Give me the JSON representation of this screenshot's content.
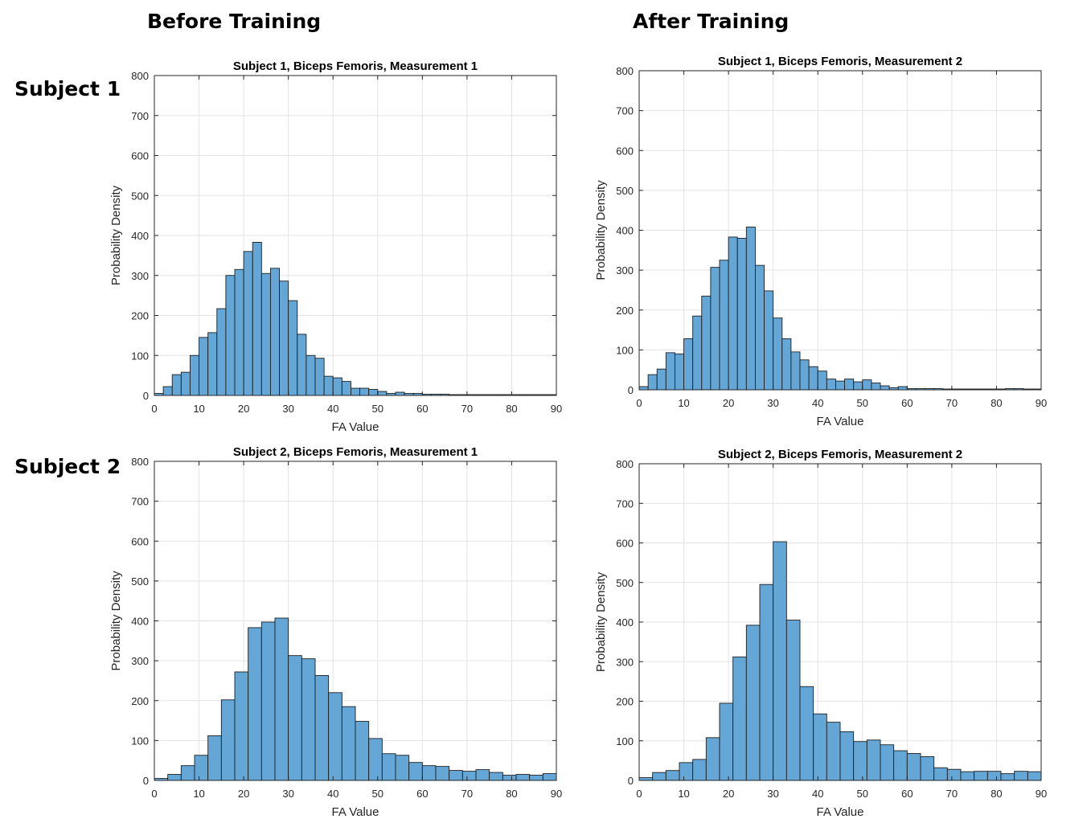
{
  "headings": {
    "before": "Before Training",
    "after": "After Training",
    "subject1": "Subject 1",
    "subject2": "Subject 2"
  },
  "colors": {
    "bar_fill": "#64a7d6",
    "bar_edge": "#1f1f1f",
    "grid": "#e3e3e3",
    "axis": "#262626"
  },
  "chart_data": [
    {
      "type": "bar",
      "title": "Subject 1, Biceps Femoris, Measurement 1",
      "xlabel": "FA Value",
      "ylabel": "Probability Density",
      "xlim": [
        0,
        90
      ],
      "ylim": [
        0,
        800
      ],
      "xticks": [
        "0",
        "10",
        "20",
        "30",
        "40",
        "50",
        "60",
        "70",
        "80",
        "90"
      ],
      "yticks": [
        "0",
        "100",
        "200",
        "300",
        "400",
        "500",
        "600",
        "700",
        "800"
      ],
      "grid": true,
      "bin_width": 2,
      "x_start": 0,
      "values": [
        5,
        22,
        52,
        58,
        100,
        145,
        157,
        217,
        300,
        315,
        360,
        383,
        305,
        318,
        286,
        237,
        153,
        100,
        93,
        48,
        44,
        35,
        18,
        18,
        15,
        10,
        5,
        8,
        5,
        5,
        3,
        3,
        3,
        2,
        2,
        2,
        2,
        2,
        2,
        2,
        2,
        2,
        2,
        2,
        2
      ]
    },
    {
      "type": "bar",
      "title": "Subject 1, Biceps Femoris, Measurement 2",
      "xlabel": "FA Value",
      "ylabel": "Probability Density",
      "xlim": [
        0,
        90
      ],
      "ylim": [
        0,
        800
      ],
      "xticks": [
        "0",
        "10",
        "20",
        "30",
        "40",
        "50",
        "60",
        "70",
        "80",
        "90"
      ],
      "yticks": [
        "0",
        "100",
        "200",
        "300",
        "400",
        "500",
        "600",
        "700",
        "800"
      ],
      "grid": true,
      "bin_width": 2,
      "x_start": 0,
      "values": [
        8,
        38,
        52,
        93,
        90,
        128,
        185,
        235,
        307,
        325,
        383,
        380,
        408,
        312,
        248,
        180,
        128,
        95,
        75,
        58,
        47,
        27,
        22,
        27,
        20,
        25,
        17,
        10,
        5,
        8,
        3,
        3,
        3,
        3,
        2,
        2,
        2,
        2,
        2,
        2,
        2,
        3,
        3,
        2,
        2
      ]
    },
    {
      "type": "bar",
      "title": "Subject 2, Biceps Femoris, Measurement 1",
      "xlabel": "FA Value",
      "ylabel": "Probability Density",
      "xlim": [
        0,
        90
      ],
      "ylim": [
        0,
        800
      ],
      "xticks": [
        "0",
        "10",
        "20",
        "30",
        "40",
        "50",
        "60",
        "70",
        "80",
        "90"
      ],
      "yticks": [
        "0",
        "100",
        "200",
        "300",
        "400",
        "500",
        "600",
        "700",
        "800"
      ],
      "grid": true,
      "bin_width": 3,
      "x_start": 0,
      "values": [
        5,
        15,
        37,
        63,
        112,
        202,
        272,
        383,
        397,
        407,
        313,
        305,
        263,
        220,
        185,
        148,
        105,
        67,
        63,
        45,
        37,
        35,
        25,
        23,
        27,
        20,
        13,
        15,
        13,
        17
      ]
    },
    {
      "type": "bar",
      "title": "Subject 2, Biceps Femoris, Measurement 2",
      "xlabel": "FA Value",
      "ylabel": "Probability Density",
      "xlim": [
        0,
        90
      ],
      "ylim": [
        0,
        800
      ],
      "xticks": [
        "0",
        "10",
        "20",
        "30",
        "40",
        "50",
        "60",
        "70",
        "80",
        "90"
      ],
      "yticks": [
        "0",
        "100",
        "200",
        "300",
        "400",
        "500",
        "600",
        "700",
        "800"
      ],
      "grid": true,
      "bin_width": 3,
      "x_start": 0,
      "values": [
        7,
        20,
        25,
        45,
        53,
        108,
        195,
        312,
        392,
        495,
        603,
        405,
        237,
        168,
        147,
        123,
        98,
        102,
        90,
        75,
        68,
        60,
        32,
        28,
        22,
        23,
        23,
        17,
        23,
        22
      ]
    }
  ]
}
